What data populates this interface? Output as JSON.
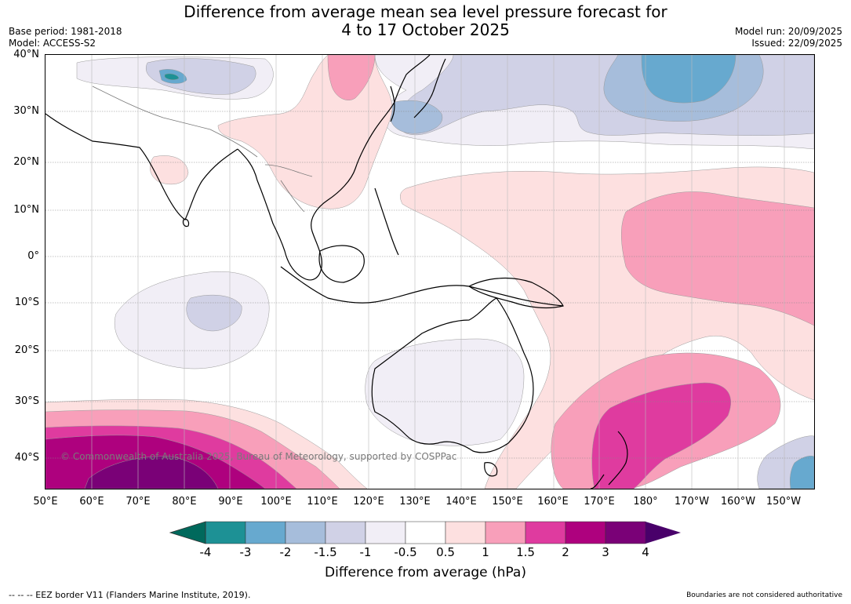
{
  "title_line1": "Difference from average mean sea level pressure forecast for",
  "title_line2": "4 to 17 October 2025",
  "base_period": "Base period: 1981-2018",
  "model": "Model: ACCESS-S2",
  "model_run": "Model run: 20/09/2025",
  "issued": "Issued: 22/09/2025",
  "copyright": "© Commonwealth of Australia 2025, Bureau of Meteorology, supported by COSPPac",
  "lat_labels": [
    "40°N",
    "30°N",
    "20°N",
    "10°N",
    "0°",
    "10°S",
    "20°S",
    "30°S",
    "40°S"
  ],
  "lon_labels": [
    "50°E",
    "60°E",
    "70°E",
    "80°E",
    "90°E",
    "100°E",
    "110°E",
    "120°E",
    "130°E",
    "140°E",
    "150°E",
    "160°E",
    "170°E",
    "180°",
    "170°W",
    "160°W",
    "150°W"
  ],
  "colorbar": {
    "ticks": [
      "-4",
      "-3",
      "-2",
      "-1.5",
      "-1",
      "-0.5",
      "0.5",
      "1",
      "1.5",
      "2",
      "3",
      "4"
    ],
    "colors": [
      "#00695c",
      "#1d9195",
      "#67a9cf",
      "#a6bddb",
      "#d0d1e6",
      "#f1eef6",
      "#ffffff",
      "#fde0e0",
      "#f89fba",
      "#df3b9f",
      "#ae017e",
      "#7a0177",
      "#49006a"
    ],
    "label": "Difference from average (hPa)"
  },
  "eez_note": "--  --  -- EEZ border V11 (Flanders Marine Institute, 2019).",
  "boundary_note": "Boundaries are not considered authoritative"
}
